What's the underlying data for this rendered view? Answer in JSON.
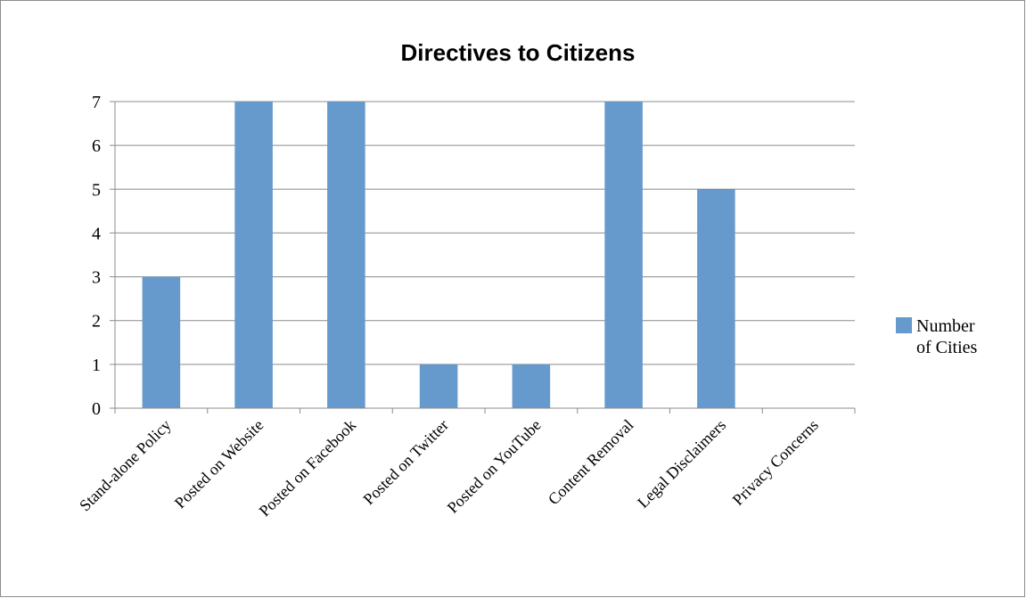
{
  "chart_data": {
    "type": "bar",
    "title": "Directives to Citizens",
    "xlabel": "",
    "ylabel": "",
    "categories": [
      "Stand-alone Policy",
      "Posted on Website",
      "Posted on Facebook",
      "Posted on Twitter",
      "Posted on YouTube",
      "Content Removal",
      "Legal Disclaimers",
      "Privacy Concerns"
    ],
    "series": [
      {
        "name": "Number of Cities",
        "values": [
          3,
          7,
          7,
          1,
          1,
          7,
          5,
          0
        ],
        "color": "#6699cc"
      }
    ],
    "ylim": [
      0,
      7
    ],
    "yticks": [
      "0",
      "1",
      "2",
      "3",
      "4",
      "5",
      "6",
      "7"
    ],
    "grid": true,
    "legend": "right"
  }
}
